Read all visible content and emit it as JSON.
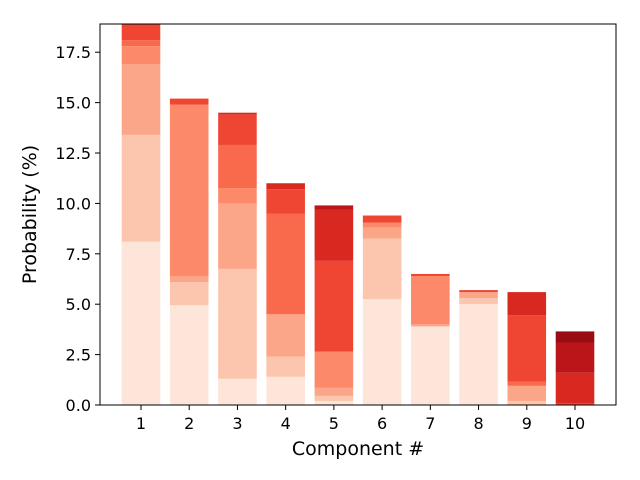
{
  "chart_data": {
    "type": "bar",
    "stacked": true,
    "categories": [
      "1",
      "2",
      "3",
      "4",
      "5",
      "6",
      "7",
      "8",
      "9",
      "10"
    ],
    "xlabel": "Component #",
    "ylabel": "Probability (%)",
    "ylim": [
      0,
      18.9
    ],
    "yticks": [
      "0.0",
      "2.5",
      "5.0",
      "7.5",
      "10.0",
      "12.5",
      "15.0",
      "17.5"
    ],
    "grid": false,
    "colormap": "Reds",
    "colors": [
      "#fee5d9",
      "#fcc5ad",
      "#fca689",
      "#fc8a6a",
      "#f9694c",
      "#ef4533",
      "#d9281f",
      "#bb151a",
      "#980c13"
    ],
    "segments": [
      [
        8.1,
        5.3,
        3.5,
        0.9,
        0.3,
        0.9
      ],
      [
        4.95,
        1.15,
        0.3,
        8.5,
        0.3
      ],
      [
        1.3,
        5.45,
        3.25,
        0.75,
        2.15,
        1.5,
        0.1
      ],
      [
        1.4,
        1.0,
        2.1,
        5.0,
        1.2,
        0.3
      ],
      [
        0.2,
        0.25,
        0.4,
        1.8,
        4.5,
        2.55,
        0.2
      ],
      [
        5.25,
        3.0,
        0.55,
        0.25,
        0.35
      ],
      [
        3.9,
        0.1,
        2.4,
        0.1
      ],
      [
        5.0,
        0.3,
        0.3,
        0.1
      ],
      [
        0.2,
        0.75,
        0.2,
        3.3,
        1.15
      ],
      [
        0.1,
        1.5,
        1.5,
        0.55
      ]
    ],
    "segment_colors": [
      [
        "#fee5d9",
        "#fcc5ad",
        "#fca689",
        "#fc8a6a",
        "#f9694c",
        "#ef4533"
      ],
      [
        "#fee5d9",
        "#fcc5ad",
        "#fca689",
        "#fc8a6a",
        "#ef4533"
      ],
      [
        "#fee5d9",
        "#fcc5ad",
        "#fca689",
        "#fc8a6a",
        "#f9694c",
        "#ef4533",
        "#d9281f"
      ],
      [
        "#fee5d9",
        "#fcc5ad",
        "#fca689",
        "#f9694c",
        "#ef4533",
        "#d9281f"
      ],
      [
        "#fee5d9",
        "#fcc5ad",
        "#fca689",
        "#fc8a6a",
        "#ef4533",
        "#d9281f",
        "#bb151a"
      ],
      [
        "#fee5d9",
        "#fcc5ad",
        "#fca689",
        "#fc8a6a",
        "#ef4533"
      ],
      [
        "#fee5d9",
        "#fca689",
        "#fc8a6a",
        "#ef4533"
      ],
      [
        "#fee5d9",
        "#fcc5ad",
        "#fca689",
        "#ef4533"
      ],
      [
        "#fcc5ad",
        "#fca689",
        "#f9694c",
        "#ef4533",
        "#d9281f"
      ],
      [
        "#ef4533",
        "#d9281f",
        "#bb151a",
        "#980c13"
      ]
    ]
  }
}
